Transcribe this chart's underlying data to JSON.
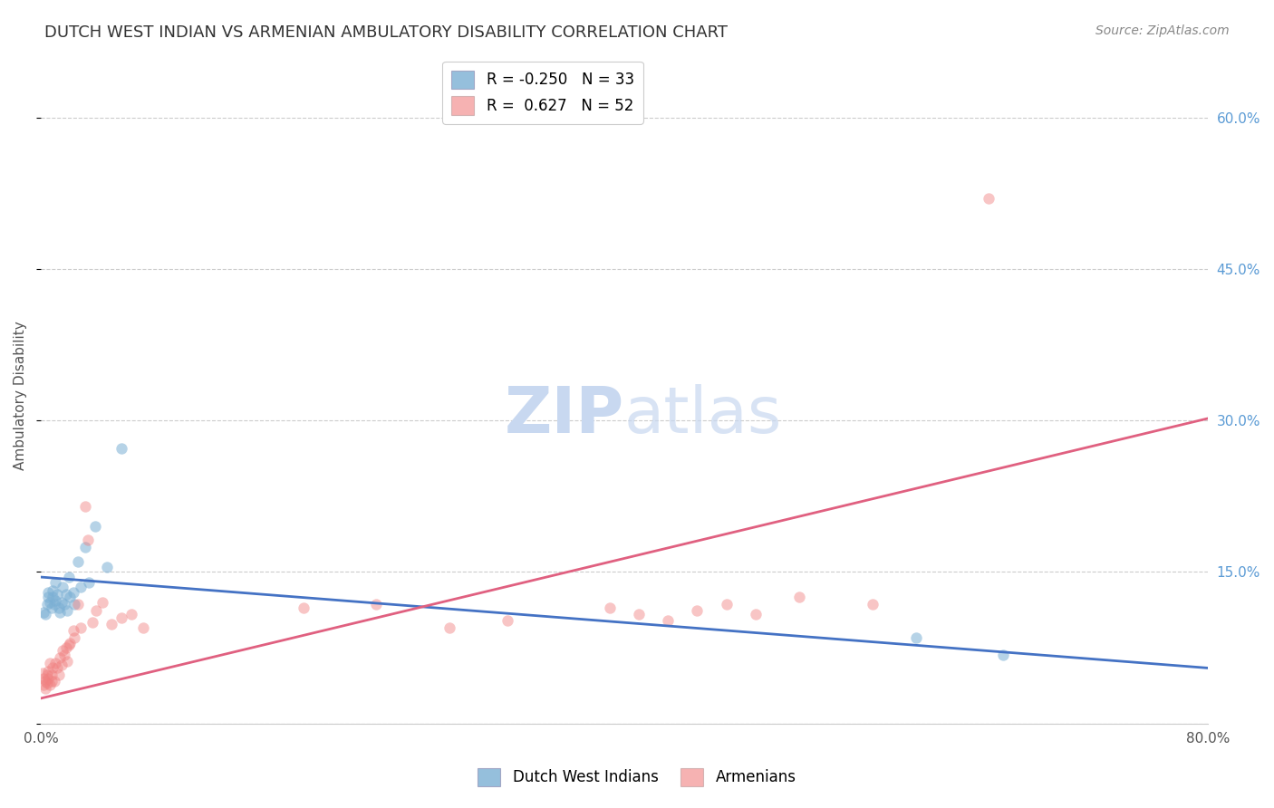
{
  "title": "DUTCH WEST INDIAN VS ARMENIAN AMBULATORY DISABILITY CORRELATION CHART",
  "source": "Source: ZipAtlas.com",
  "ylabel": "Ambulatory Disability",
  "xlim": [
    0.0,
    0.8
  ],
  "ylim": [
    0.0,
    0.65
  ],
  "x_tick_positions": [
    0.0,
    0.2,
    0.4,
    0.6,
    0.8
  ],
  "x_tick_labels": [
    "0.0%",
    "",
    "",
    "",
    "80.0%"
  ],
  "y_ticks": [
    0.0,
    0.15,
    0.3,
    0.45,
    0.6
  ],
  "y_tick_labels": [
    "",
    "15.0%",
    "30.0%",
    "45.0%",
    "60.0%"
  ],
  "blue_color": "#7BAFD4",
  "pink_color": "#F08080",
  "blue_line_color": "#4472C4",
  "pink_line_color": "#E06080",
  "right_tick_color": "#5B9BD5",
  "dutch_west_indians_x": [
    0.002,
    0.003,
    0.004,
    0.005,
    0.005,
    0.006,
    0.007,
    0.008,
    0.008,
    0.009,
    0.01,
    0.01,
    0.011,
    0.012,
    0.013,
    0.014,
    0.015,
    0.016,
    0.017,
    0.018,
    0.019,
    0.02,
    0.022,
    0.023,
    0.025,
    0.027,
    0.03,
    0.033,
    0.037,
    0.045,
    0.055,
    0.6,
    0.66
  ],
  "dutch_west_indians_y": [
    0.11,
    0.108,
    0.118,
    0.125,
    0.13,
    0.12,
    0.115,
    0.125,
    0.132,
    0.118,
    0.14,
    0.122,
    0.128,
    0.115,
    0.11,
    0.12,
    0.135,
    0.118,
    0.128,
    0.112,
    0.145,
    0.125,
    0.13,
    0.118,
    0.16,
    0.135,
    0.175,
    0.14,
    0.195,
    0.155,
    0.272,
    0.085,
    0.068
  ],
  "armenians_x": [
    0.001,
    0.002,
    0.002,
    0.003,
    0.003,
    0.004,
    0.004,
    0.005,
    0.005,
    0.006,
    0.006,
    0.007,
    0.007,
    0.008,
    0.009,
    0.01,
    0.011,
    0.012,
    0.013,
    0.014,
    0.015,
    0.016,
    0.017,
    0.018,
    0.019,
    0.02,
    0.022,
    0.023,
    0.025,
    0.027,
    0.03,
    0.032,
    0.035,
    0.038,
    0.042,
    0.048,
    0.055,
    0.062,
    0.07,
    0.18,
    0.23,
    0.28,
    0.32,
    0.39,
    0.41,
    0.43,
    0.45,
    0.47,
    0.49,
    0.52,
    0.57,
    0.65
  ],
  "armenians_y": [
    0.05,
    0.045,
    0.038,
    0.042,
    0.035,
    0.048,
    0.04,
    0.045,
    0.052,
    0.038,
    0.06,
    0.042,
    0.048,
    0.055,
    0.042,
    0.06,
    0.055,
    0.048,
    0.065,
    0.058,
    0.072,
    0.068,
    0.075,
    0.062,
    0.078,
    0.08,
    0.092,
    0.085,
    0.118,
    0.095,
    0.215,
    0.182,
    0.1,
    0.112,
    0.12,
    0.098,
    0.105,
    0.108,
    0.095,
    0.115,
    0.118,
    0.095,
    0.102,
    0.115,
    0.108,
    0.102,
    0.112,
    0.118,
    0.108,
    0.125,
    0.118,
    0.52
  ],
  "blue_trendline_x": [
    0.0,
    0.8
  ],
  "blue_trendline_y": [
    0.145,
    0.055
  ],
  "pink_trendline_x": [
    0.0,
    0.8
  ],
  "pink_trendline_y": [
    0.025,
    0.302
  ],
  "background_color": "#FFFFFF",
  "grid_color": "#CCCCCC",
  "title_fontsize": 13,
  "source_fontsize": 10,
  "axis_label_fontsize": 11,
  "tick_fontsize": 11,
  "legend_fontsize": 12,
  "watermark_fontsize": 52
}
